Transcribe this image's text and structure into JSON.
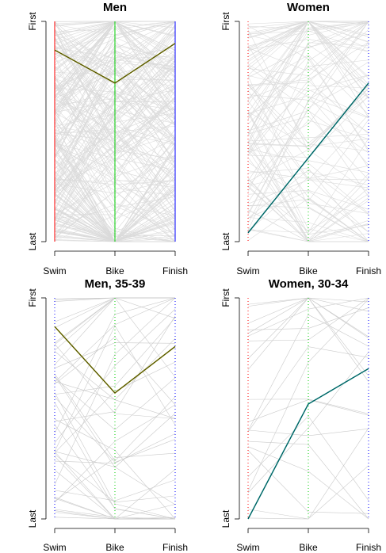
{
  "chart_data": [
    {
      "type": "line",
      "title": "Men",
      "categories": [
        "Swim",
        "Bike",
        "Finish"
      ],
      "y_ticks": [
        "First",
        "Last"
      ],
      "axis_colors": [
        "#ff0000",
        "#00cc00",
        "#0000ff"
      ],
      "axis_style": "solid",
      "background_line_count": 250,
      "highlight": {
        "color": "#808000",
        "values": [
          0.87,
          0.72,
          0.9
        ]
      }
    },
    {
      "type": "line",
      "title": "Women",
      "categories": [
        "Swim",
        "Bike",
        "Finish"
      ],
      "y_ticks": [
        "First",
        "Last"
      ],
      "axis_colors": [
        "#ff0000",
        "#00cc00",
        "#0000ff"
      ],
      "axis_style": "dotted",
      "background_line_count": 110,
      "highlight": {
        "color": "#008080",
        "values": [
          0.04,
          0.38,
          0.72
        ]
      }
    },
    {
      "type": "line",
      "title": "Men, 35-39",
      "categories": [
        "Swim",
        "Bike",
        "Finish"
      ],
      "y_ticks": [
        "First",
        "Last"
      ],
      "axis_colors": [
        "#0000ff",
        "#00cc00",
        "#0000ff"
      ],
      "axis_style": "dotted",
      "background_line_count": 45,
      "highlight": {
        "color": "#808000",
        "values": [
          0.87,
          0.57,
          0.78
        ]
      }
    },
    {
      "type": "line",
      "title": "Women, 30-34",
      "categories": [
        "Swim",
        "Bike",
        "Finish"
      ],
      "y_ticks": [
        "First",
        "Last"
      ],
      "axis_colors": [
        "#ff0000",
        "#00cc00",
        "#0000ff"
      ],
      "axis_style": "dotted",
      "background_line_count": 22,
      "highlight": {
        "color": "#008080",
        "values": [
          0.0,
          0.52,
          0.68
        ]
      }
    }
  ]
}
